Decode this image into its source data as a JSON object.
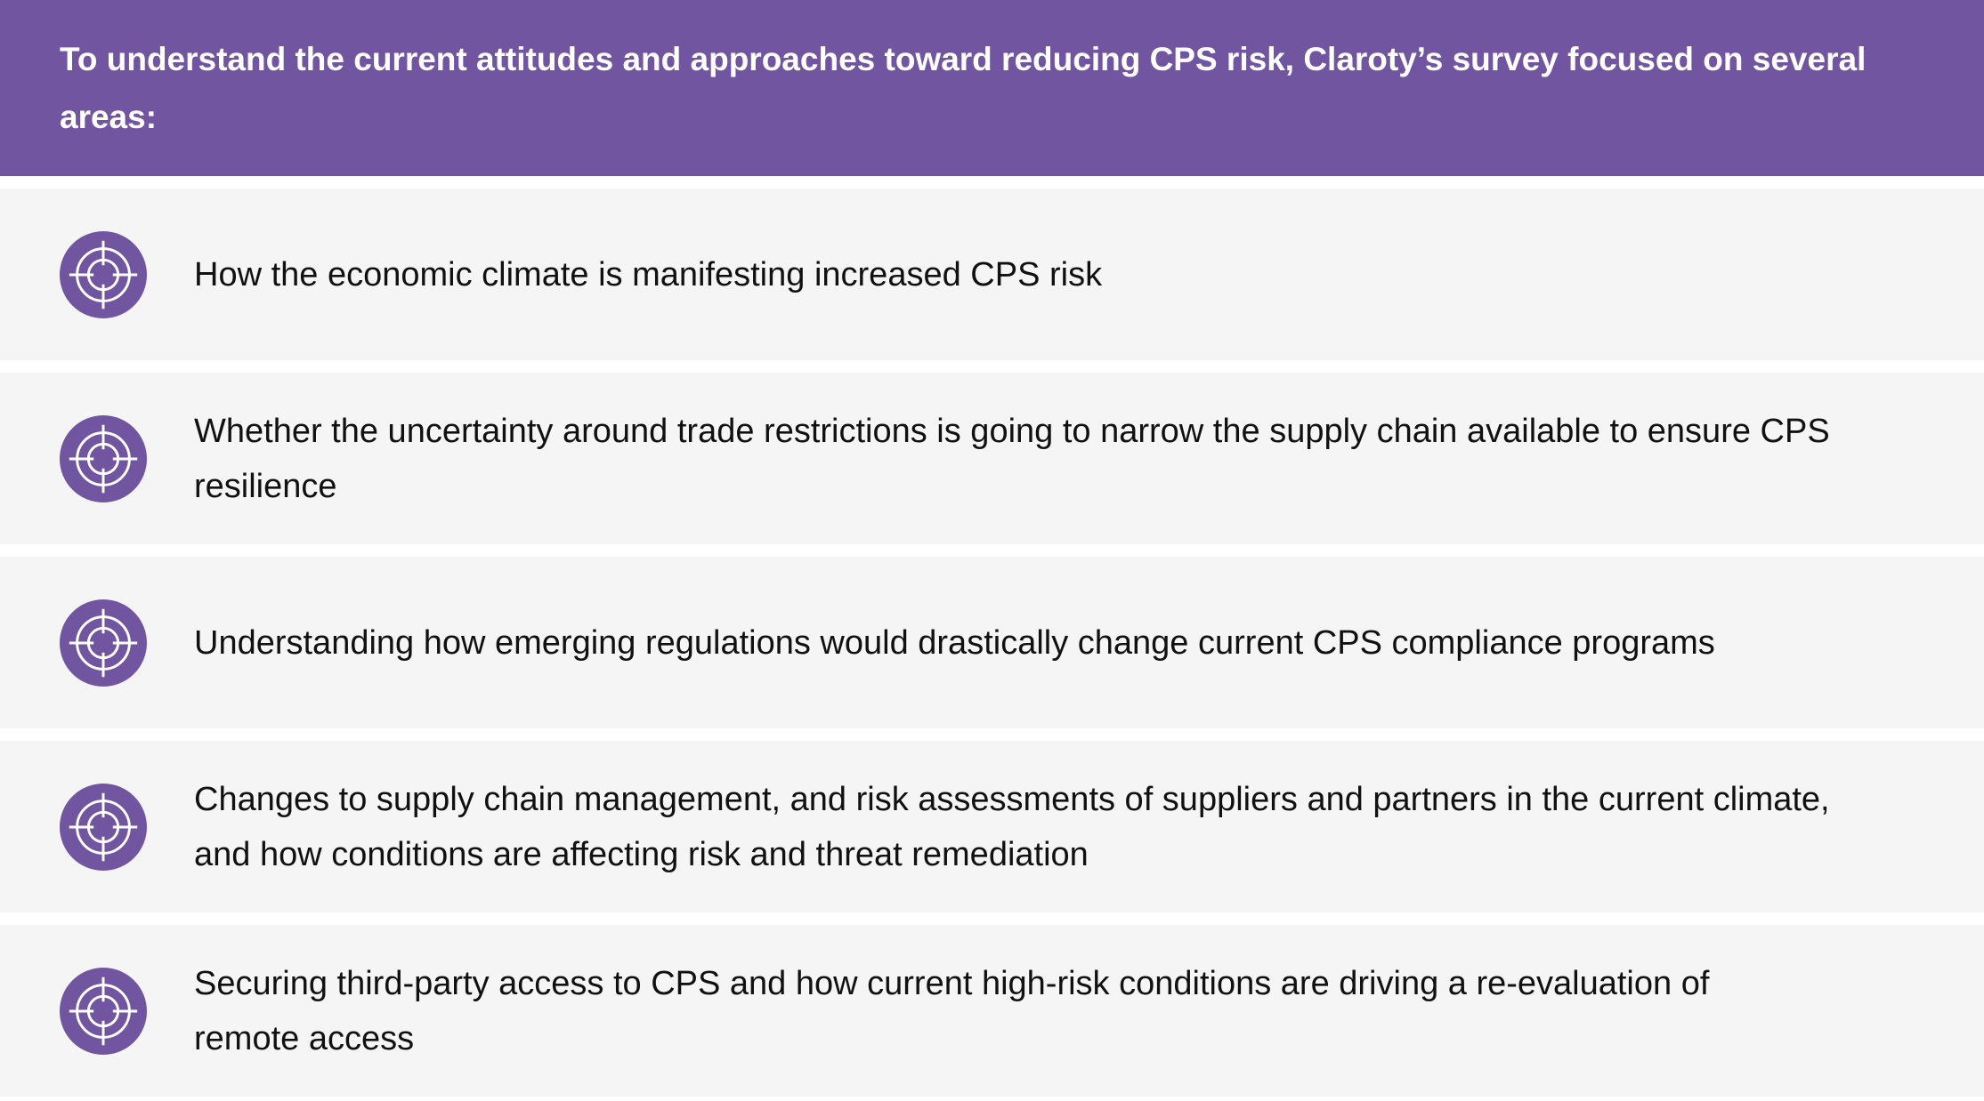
{
  "header": {
    "text": "To understand the current attitudes and approaches toward reducing CPS risk, Claroty’s survey focused on several areas:"
  },
  "accent_color": "#7155a1",
  "items": [
    {
      "icon": "target-icon",
      "text": "How the economic climate is manifesting increased CPS risk"
    },
    {
      "icon": "target-icon",
      "text": "Whether the uncertainty around trade restrictions is going to narrow the supply chain available to ensure CPS resilience"
    },
    {
      "icon": "target-icon",
      "text": "Understanding how emerging regulations would drastically change current CPS compliance programs"
    },
    {
      "icon": "target-icon",
      "text": "Changes to supply chain management, and risk assessments of suppliers and partners in the current climate, and how conditions are affecting risk and threat remediation"
    },
    {
      "icon": "target-icon",
      "text": "Securing third-party access to CPS and how current high-risk conditions are driving a re-evaluation of remote access"
    }
  ]
}
